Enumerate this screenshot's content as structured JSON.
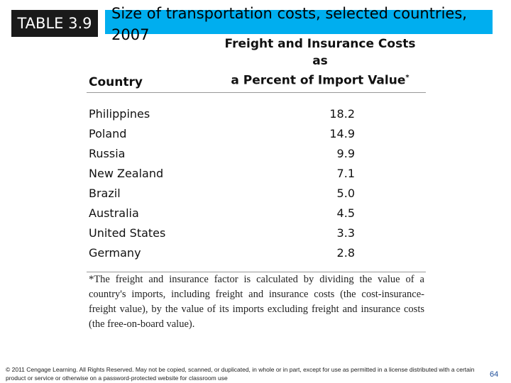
{
  "badge": "TABLE 3.9",
  "title": "Size of transportation costs, selected countries, 2007",
  "colors": {
    "title_bar": "#00aeef",
    "badge_bg": "#1a1a1a",
    "page_number": "#1f4e9a"
  },
  "table": {
    "headers": {
      "country": "Country",
      "value_line1": "Freight and Insurance Costs as",
      "value_line2": "a Percent of Import Value",
      "value_marker": "*"
    },
    "rows": [
      {
        "country": "Philippines",
        "value": "18.2"
      },
      {
        "country": "Poland",
        "value": "14.9"
      },
      {
        "country": "Russia",
        "value": "9.9"
      },
      {
        "country": "New Zealand",
        "value": "7.1"
      },
      {
        "country": "Brazil",
        "value": "5.0"
      },
      {
        "country": "Australia",
        "value": "4.5"
      },
      {
        "country": "United States",
        "value": "3.3"
      },
      {
        "country": "Germany",
        "value": "2.8"
      }
    ],
    "footnote": "*The freight and insurance factor is calculated by dividing the value of a country's imports, including freight and insurance costs (the cost-insurance-freight value), by the value of its imports excluding freight and insurance costs (the free-on-board value)."
  },
  "copyright": "© 2011 Cengage Learning. All Rights Reserved. May not be copied, scanned, or duplicated, in whole or in part, except for use as permitted in a license distributed with a certain product or service or otherwise on a password-protected website for classroom use",
  "page_number": "64"
}
